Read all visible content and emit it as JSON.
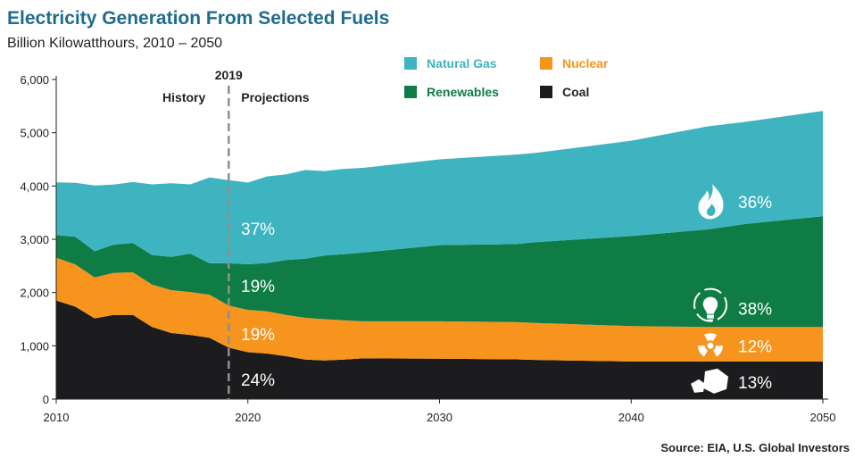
{
  "chart_data": {
    "type": "area",
    "stacked": true,
    "title": "Electricity Generation From Selected Fuels",
    "subtitle": "Billion Kilowatthours, 2010 – 2050",
    "source": "Source: EIA, U.S. Global Investors",
    "x": [
      2010,
      2011,
      2012,
      2013,
      2014,
      2015,
      2016,
      2017,
      2018,
      2019,
      2020,
      2021,
      2022,
      2023,
      2024,
      2025,
      2026,
      2030,
      2034,
      2035,
      2040,
      2044,
      2046,
      2050
    ],
    "series": [
      {
        "name": "Coal",
        "color": "#1c1c1e",
        "values": [
          1850,
          1735,
          1515,
          1580,
          1580,
          1355,
          1240,
          1205,
          1150,
          965,
          880,
          855,
          805,
          740,
          725,
          740,
          765,
          760,
          745,
          735,
          705,
          705,
          705,
          705
        ]
      },
      {
        "name": "Nuclear",
        "color": "#f7941d",
        "values": [
          805,
          790,
          770,
          790,
          800,
          795,
          805,
          805,
          810,
          790,
          795,
          795,
          775,
          785,
          775,
          740,
          695,
          700,
          700,
          695,
          665,
          650,
          650,
          650
        ]
      },
      {
        "name": "Renewables",
        "color": "#0f7b45",
        "values": [
          425,
          520,
          490,
          530,
          550,
          555,
          625,
          720,
          590,
          795,
          855,
          905,
          1030,
          1110,
          1195,
          1240,
          1290,
          1430,
          1465,
          1515,
          1690,
          1830,
          1935,
          2075
        ]
      },
      {
        "name": "Natural Gas",
        "color": "#3db4bf",
        "values": [
          990,
          1015,
          1235,
          1125,
          1145,
          1325,
          1380,
          1300,
          1610,
          1560,
          1535,
          1625,
          1610,
          1665,
          1585,
          1600,
          1590,
          1610,
          1680,
          1675,
          1790,
          1935,
          1915,
          1980
        ]
      }
    ],
    "xlim": [
      2010,
      2050
    ],
    "ylim": [
      0,
      6000
    ],
    "xticks": [
      2010,
      2020,
      2030,
      2040,
      2050
    ],
    "yticks": [
      0,
      1000,
      2000,
      3000,
      4000,
      5000,
      6000
    ],
    "ytick_labels": [
      "0",
      "1,000",
      "2,000",
      "3,000",
      "4,000",
      "5,000",
      "6,000"
    ],
    "divider": {
      "x": 2019,
      "label": "2019",
      "left_label": "History",
      "right_label": "Projections"
    },
    "legend": [
      {
        "name": "Natural Gas",
        "color": "#3db4bf"
      },
      {
        "name": "Nuclear",
        "color": "#f7941d"
      },
      {
        "name": "Renewables",
        "color": "#0f7b45"
      },
      {
        "name": "Coal",
        "color": "#1c1c1e"
      }
    ],
    "annotations_2019": [
      {
        "series": "Natural Gas",
        "label": "37%",
        "at_value": 3200
      },
      {
        "series": "Renewables",
        "label": "19%",
        "at_value": 2130
      },
      {
        "series": "Nuclear",
        "label": "19%",
        "at_value": 1220
      },
      {
        "series": "Coal",
        "label": "24%",
        "at_value": 370
      }
    ],
    "annotations_2050": [
      {
        "series": "Natural Gas",
        "label": "36%",
        "icon": "flame-icon",
        "at_value": 3700
      },
      {
        "series": "Renewables",
        "label": "38%",
        "icon": "lightbulb-icon",
        "at_value": 1700
      },
      {
        "series": "Nuclear",
        "label": "12%",
        "icon": "radiation-icon",
        "at_value": 1000
      },
      {
        "series": "Coal",
        "label": "13%",
        "icon": "coal-icon",
        "at_value": 320
      }
    ]
  }
}
